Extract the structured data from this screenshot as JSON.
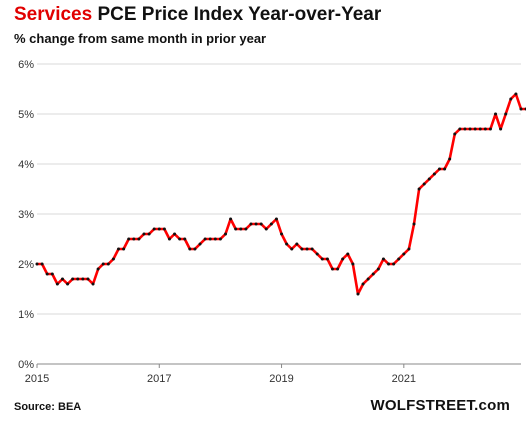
{
  "title": {
    "highlight": "Services",
    "rest": " PCE Price Index Year-over-Year"
  },
  "subtitle": "% change from same month in prior year",
  "source": "Source: BEA",
  "brand": "WOLFSTREET.com",
  "colors": {
    "line": "#ff0000",
    "marker": "#111111",
    "grid": "#d9d9d9",
    "highlight": "#e10000"
  },
  "chart_data": {
    "type": "line",
    "title": "Services PCE Price Index Year-over-Year",
    "subtitle": "% change from same month in prior year",
    "xlabel": "",
    "ylabel": "",
    "grid": true,
    "x_start": "2015-01",
    "frequency": "monthly",
    "xlim": [
      "2015-01",
      "2022-12"
    ],
    "ylim": [
      0,
      6
    ],
    "y_ticks": [
      0,
      1,
      2,
      3,
      4,
      5,
      6
    ],
    "y_tick_labels": [
      "0%",
      "1%",
      "2%",
      "3%",
      "4%",
      "5%",
      "6%"
    ],
    "x_ticks": [
      "2015-01",
      "2017-01",
      "2019-01",
      "2021-01"
    ],
    "x_tick_labels": [
      "2015",
      "2017",
      "2019",
      "2021"
    ],
    "series": [
      {
        "values": [
          2.0,
          2.0,
          1.8,
          1.8,
          1.6,
          1.7,
          1.6,
          1.7,
          1.7,
          1.7,
          1.7,
          1.6,
          1.9,
          2.0,
          2.0,
          2.1,
          2.3,
          2.3,
          2.5,
          2.5,
          2.5,
          2.6,
          2.6,
          2.7,
          2.7,
          2.7,
          2.5,
          2.6,
          2.5,
          2.5,
          2.3,
          2.3,
          2.4,
          2.5,
          2.5,
          2.5,
          2.5,
          2.6,
          2.9,
          2.7,
          2.7,
          2.7,
          2.8,
          2.8,
          2.8,
          2.7,
          2.8,
          2.9,
          2.6,
          2.4,
          2.3,
          2.4,
          2.3,
          2.3,
          2.3,
          2.2,
          2.1,
          2.1,
          1.9,
          1.9,
          2.1,
          2.2,
          2.0,
          1.4,
          1.6,
          1.7,
          1.8,
          1.9,
          2.1,
          2.0,
          2.0,
          2.1,
          2.2,
          2.3,
          2.8,
          3.5,
          3.6,
          3.7,
          3.8,
          3.9,
          3.9,
          4.1,
          4.6,
          4.7,
          4.7,
          4.7,
          4.7,
          4.7,
          4.7,
          4.7,
          5.0,
          4.7,
          5.0,
          5.3,
          5.4,
          5.1,
          5.1
        ]
      }
    ]
  }
}
